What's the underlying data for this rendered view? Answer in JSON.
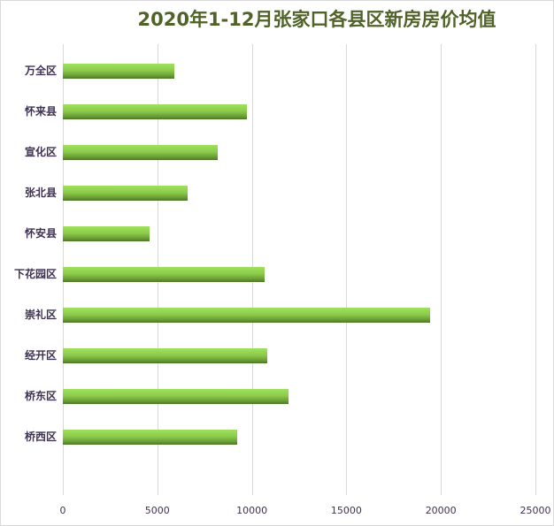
{
  "chart_data": {
    "type": "bar",
    "orientation": "horizontal",
    "title": "2020年1-12月张家口各县区新房房价均值",
    "xlabel": "",
    "ylabel": "",
    "categories": [
      "万全区",
      "怀来县",
      "宣化区",
      "张北县",
      "怀安县",
      "下花园区",
      "崇礼区",
      "经开区",
      "桥东区",
      "桥西区"
    ],
    "values": [
      5890,
      9740,
      8190,
      6600,
      4590,
      10670,
      19430,
      10810,
      11940,
      9220
    ],
    "xlim": [
      0,
      25000
    ],
    "xticks": [
      0,
      5000,
      10000,
      15000,
      20000,
      25000
    ],
    "xtick_labels": [
      "0",
      "5000",
      "10000",
      "15000",
      "20000",
      "25000"
    ],
    "grid": true,
    "legend": null,
    "colors": {
      "bar_top": "#9fe05c",
      "bar_bottom": "#4c7526",
      "title": "#4f6228",
      "labels": "#3f3151",
      "grid": "#d9d9d9"
    }
  }
}
